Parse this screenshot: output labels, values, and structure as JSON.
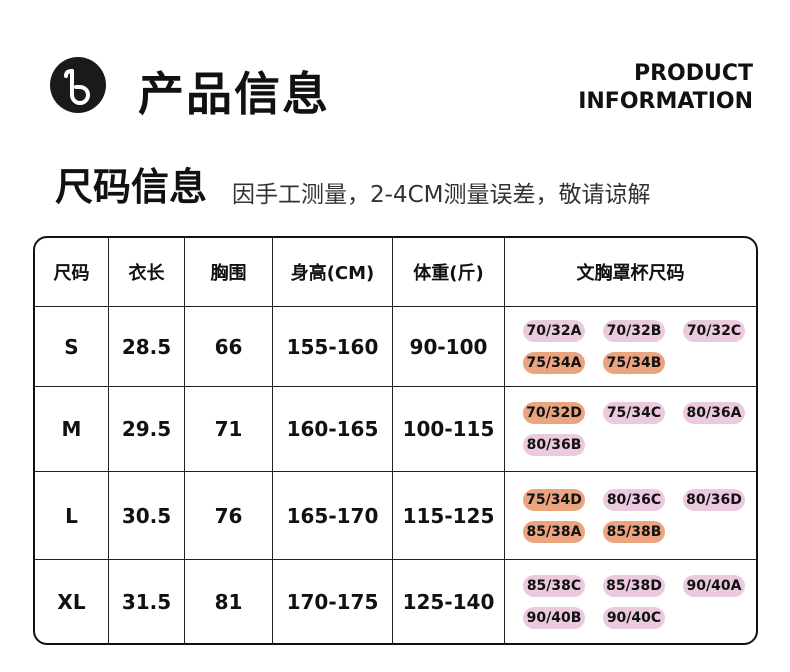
{
  "header": {
    "title": "产品信息",
    "english_lines": [
      "PRODUCT",
      "INFORMATION"
    ]
  },
  "section": {
    "title": "尺码信息",
    "note": "因手工测量，2-4CM测量误差，敬请谅解"
  },
  "table": {
    "headers": [
      "尺码",
      "衣长",
      "胸围",
      "身高(CM)",
      "体重(斤)",
      "文胸罩杯尺码"
    ],
    "rows": [
      [
        "S",
        "28.5",
        "66",
        "155-160",
        "90-100",
        [
          {
            "label": "70/32A",
            "color": "#ebc9de"
          },
          {
            "label": "70/32B",
            "color": "#ebc9de"
          },
          {
            "label": "70/32C",
            "color": "#ebc9de"
          },
          {
            "label": "75/34A",
            "color": "#eaa47f"
          },
          {
            "label": "75/34B",
            "color": "#eaa47f"
          }
        ]
      ],
      [
        "M",
        "29.5",
        "71",
        "160-165",
        "100-115",
        [
          {
            "label": "70/32D",
            "color": "#eaa47f"
          },
          {
            "label": "75/34C",
            "color": "#ebc9de"
          },
          {
            "label": "80/36A",
            "color": "#ebc9de"
          },
          {
            "label": "80/36B",
            "color": "#ebc9de"
          }
        ]
      ],
      [
        "L",
        "30.5",
        "76",
        "165-170",
        "115-125",
        [
          {
            "label": "75/34D",
            "color": "#eaa47f"
          },
          {
            "label": "80/36C",
            "color": "#ebc9de"
          },
          {
            "label": "80/36D",
            "color": "#ebc9de"
          },
          {
            "label": "85/38A",
            "color": "#eaa47f"
          },
          {
            "label": "85/38B",
            "color": "#eaa47f"
          }
        ]
      ],
      [
        "XL",
        "31.5",
        "81",
        "170-175",
        "125-140",
        [
          {
            "label": "85/38C",
            "color": "#ebc9de"
          },
          {
            "label": "85/38D",
            "color": "#ebc9de"
          },
          {
            "label": "90/40A",
            "color": "#ebc9de"
          },
          {
            "label": "90/40B",
            "color": "#ebc9de"
          },
          {
            "label": "90/40C",
            "color": "#ebc9de"
          }
        ]
      ]
    ]
  }
}
